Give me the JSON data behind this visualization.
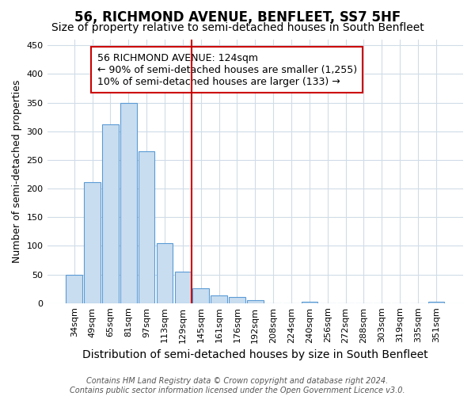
{
  "title": "56, RICHMOND AVENUE, BENFLEET, SS7 5HF",
  "subtitle": "Size of property relative to semi-detached houses in South Benfleet",
  "xlabel": "Distribution of semi-detached houses by size in South Benfleet",
  "ylabel": "Number of semi-detached properties",
  "categories": [
    "34sqm",
    "49sqm",
    "65sqm",
    "81sqm",
    "97sqm",
    "113sqm",
    "129sqm",
    "145sqm",
    "161sqm",
    "176sqm",
    "192sqm",
    "208sqm",
    "224sqm",
    "240sqm",
    "256sqm",
    "272sqm",
    "288sqm",
    "303sqm",
    "319sqm",
    "335sqm",
    "351sqm"
  ],
  "values": [
    50,
    211,
    312,
    350,
    265,
    105,
    55,
    26,
    13,
    10,
    5,
    0,
    0,
    3,
    0,
    0,
    0,
    0,
    0,
    0,
    2
  ],
  "bar_color": "#c8ddf0",
  "bar_edge_color": "#5b9bd5",
  "vline_color": "#cc0000",
  "vline_position": 6.5,
  "annotation_text": "56 RICHMOND AVENUE: 124sqm\n← 90% of semi-detached houses are smaller (1,255)\n10% of semi-detached houses are larger (133) →",
  "annotation_box_facecolor": "white",
  "annotation_box_edgecolor": "#cc0000",
  "ylim": [
    0,
    460
  ],
  "yticks": [
    0,
    50,
    100,
    150,
    200,
    250,
    300,
    350,
    400,
    450
  ],
  "footer": "Contains HM Land Registry data © Crown copyright and database right 2024.\nContains public sector information licensed under the Open Government Licence v3.0.",
  "background_color": "#ffffff",
  "plot_bg_color": "#ffffff",
  "grid_color": "#d0dce8",
  "title_fontsize": 12,
  "subtitle_fontsize": 10,
  "xlabel_fontsize": 10,
  "ylabel_fontsize": 9,
  "tick_fontsize": 8,
  "annotation_fontsize": 9,
  "footer_fontsize": 7
}
